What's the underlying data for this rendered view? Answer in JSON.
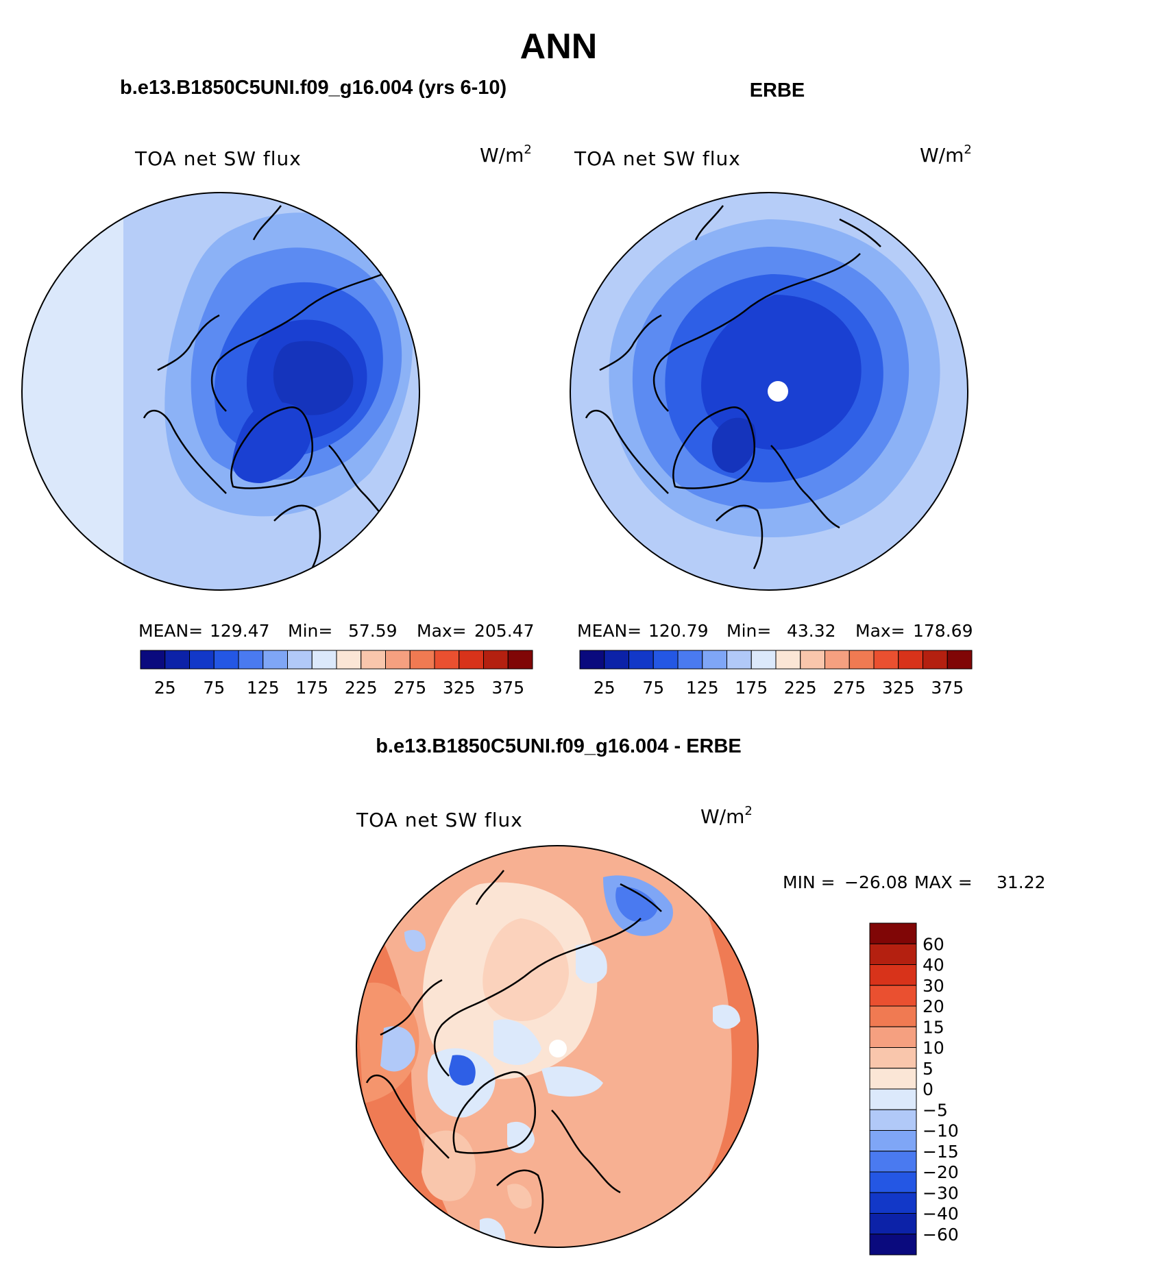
{
  "figure": {
    "title": "ANN",
    "panels": [
      {
        "case_title": "b.e13.B1850C5UNI.f09_g16.004 (yrs 6-10)",
        "variable": "TOA net SW flux",
        "units": "W/m",
        "units_exp": "2",
        "stats": {
          "mean_label": "MEAN=",
          "mean": "129.47",
          "min_label": "Min=",
          "min": "57.59",
          "max_label": "Max=",
          "max": "205.47"
        }
      },
      {
        "case_title": "ERBE",
        "variable": "TOA net SW flux",
        "units": "W/m",
        "units_exp": "2",
        "stats": {
          "mean_label": "MEAN=",
          "mean": "120.79",
          "min_label": "Min=",
          "min": "43.32",
          "max_label": "Max=",
          "max": "178.69"
        }
      }
    ],
    "diff_panel": {
      "case_title": "b.e13.B1850C5UNI.f09_g16.004 - ERBE",
      "variable": "TOA net SW flux",
      "units": "W/m",
      "units_exp": "2",
      "minmax": {
        "min_label": "MIN =",
        "min": "−26.08",
        "max_label": "MAX =",
        "max": "31.22"
      }
    },
    "colorbar_abs": {
      "labels": [
        "25",
        "75",
        "125",
        "175",
        "225",
        "275",
        "325",
        "375"
      ],
      "colors": [
        "#0a0a7e",
        "#0c22a8",
        "#1238c8",
        "#2457e4",
        "#4a7af0",
        "#7fa6f6",
        "#b1c9f8",
        "#dce9fb",
        "#fbe6d6",
        "#f9c6ac",
        "#f5a080",
        "#f07a52",
        "#ea5030",
        "#d8331a",
        "#b42010",
        "#800606"
      ]
    },
    "colorbar_diff": {
      "labels": [
        "60",
        "40",
        "30",
        "20",
        "15",
        "10",
        "5",
        "0",
        "−5",
        "−10",
        "−15",
        "−20",
        "−30",
        "−40",
        "−60"
      ],
      "colors": [
        "#800606",
        "#b42010",
        "#d8331a",
        "#ea5030",
        "#f07a52",
        "#f5a080",
        "#f9c6ac",
        "#fbe6d6",
        "#dce9fb",
        "#b1c9f8",
        "#7fa6f6",
        "#4a7af0",
        "#2457e4",
        "#1238c8",
        "#0c22a8",
        "#0a0a7e"
      ]
    }
  }
}
